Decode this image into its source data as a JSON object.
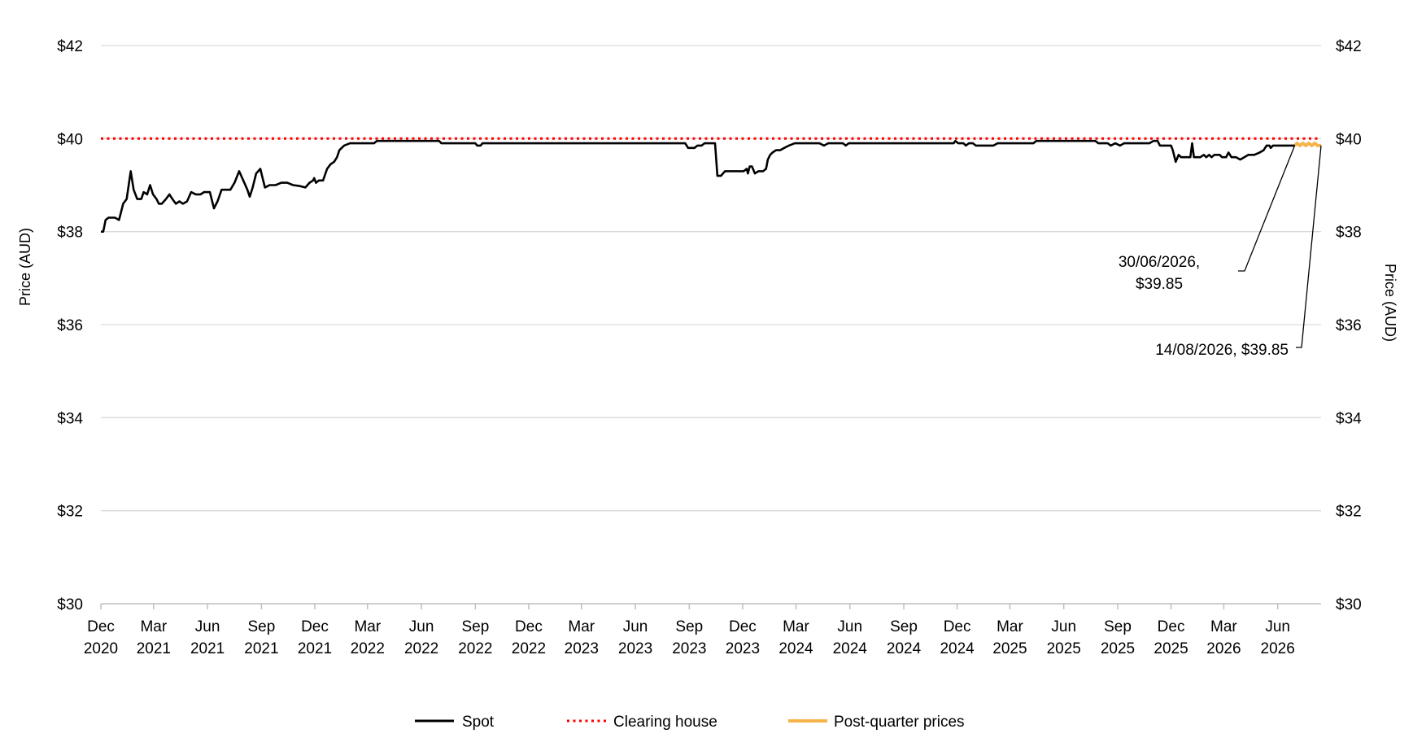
{
  "chart_data": {
    "type": "line",
    "title": "",
    "ylabel_left": "Price (AUD)",
    "ylabel_right": "Price (AUD)",
    "ylim": [
      30,
      42
    ],
    "yticks": [
      30,
      32,
      34,
      36,
      38,
      40,
      42
    ],
    "ytick_labels": [
      "$30",
      "$32",
      "$34",
      "$36",
      "$38",
      "$40",
      "$42"
    ],
    "x_range": [
      "2020-12-01",
      "2026-08-14"
    ],
    "xticks": [
      {
        "date": "2020-12-01",
        "label": [
          "Dec",
          "2020"
        ]
      },
      {
        "date": "2021-03-01",
        "label": [
          "Mar",
          "2021"
        ]
      },
      {
        "date": "2021-06-01",
        "label": [
          "Jun",
          "2021"
        ]
      },
      {
        "date": "2021-09-01",
        "label": [
          "Sep",
          "2021"
        ]
      },
      {
        "date": "2021-12-01",
        "label": [
          "Dec",
          "2021"
        ]
      },
      {
        "date": "2022-03-01",
        "label": [
          "Mar",
          "2022"
        ]
      },
      {
        "date": "2022-06-01",
        "label": [
          "Jun",
          "2022"
        ]
      },
      {
        "date": "2022-09-01",
        "label": [
          "Sep",
          "2022"
        ]
      },
      {
        "date": "2022-12-01",
        "label": [
          "Dec",
          "2022"
        ]
      },
      {
        "date": "2023-03-01",
        "label": [
          "Mar",
          "2023"
        ]
      },
      {
        "date": "2023-06-01",
        "label": [
          "Jun",
          "2023"
        ]
      },
      {
        "date": "2023-09-01",
        "label": [
          "Sep",
          "2023"
        ]
      },
      {
        "date": "2023-12-01",
        "label": [
          "Dec",
          "2023"
        ]
      },
      {
        "date": "2024-03-01",
        "label": [
          "Mar",
          "2024"
        ]
      },
      {
        "date": "2024-06-01",
        "label": [
          "Jun",
          "2024"
        ]
      },
      {
        "date": "2024-09-01",
        "label": [
          "Sep",
          "2024"
        ]
      },
      {
        "date": "2024-12-01",
        "label": [
          "Dec",
          "2024"
        ]
      },
      {
        "date": "2025-03-01",
        "label": [
          "Mar",
          "2025"
        ]
      },
      {
        "date": "2025-06-01",
        "label": [
          "Jun",
          "2025"
        ]
      },
      {
        "date": "2025-09-01",
        "label": [
          "Sep",
          "2025"
        ]
      },
      {
        "date": "2025-12-01",
        "label": [
          "Dec",
          "2025"
        ]
      },
      {
        "date": "2026-03-01",
        "label": [
          "Mar",
          "2026"
        ]
      },
      {
        "date": "2026-06-01",
        "label": [
          "Jun",
          "2026"
        ]
      }
    ],
    "grid": true,
    "legend_position": "bottom",
    "series": [
      {
        "name": "Spot",
        "color": "#000000",
        "style": "solid",
        "points": [
          [
            "2020-12-01",
            38.0
          ],
          [
            "2020-12-05",
            38.0
          ],
          [
            "2020-12-09",
            38.25
          ],
          [
            "2020-12-14",
            38.3
          ],
          [
            "2020-12-25",
            38.3
          ],
          [
            "2021-01-01",
            38.25
          ],
          [
            "2021-01-08",
            38.6
          ],
          [
            "2021-01-14",
            38.7
          ],
          [
            "2021-01-21",
            39.3
          ],
          [
            "2021-01-26",
            38.9
          ],
          [
            "2021-02-01",
            38.7
          ],
          [
            "2021-02-08",
            38.7
          ],
          [
            "2021-02-12",
            38.85
          ],
          [
            "2021-02-18",
            38.8
          ],
          [
            "2021-02-23",
            39.0
          ],
          [
            "2021-02-28",
            38.8
          ],
          [
            "2021-03-06",
            38.7
          ],
          [
            "2021-03-10",
            38.6
          ],
          [
            "2021-03-15",
            38.6
          ],
          [
            "2021-03-22",
            38.7
          ],
          [
            "2021-03-28",
            38.8
          ],
          [
            "2021-04-02",
            38.7
          ],
          [
            "2021-04-08",
            38.6
          ],
          [
            "2021-04-14",
            38.65
          ],
          [
            "2021-04-20",
            38.6
          ],
          [
            "2021-04-27",
            38.65
          ],
          [
            "2021-05-04",
            38.85
          ],
          [
            "2021-05-12",
            38.8
          ],
          [
            "2021-05-20",
            38.8
          ],
          [
            "2021-05-26",
            38.85
          ],
          [
            "2021-06-05",
            38.85
          ],
          [
            "2021-06-12",
            38.5
          ],
          [
            "2021-06-18",
            38.65
          ],
          [
            "2021-06-25",
            38.9
          ],
          [
            "2021-07-01",
            38.9
          ],
          [
            "2021-07-10",
            38.9
          ],
          [
            "2021-07-17",
            39.05
          ],
          [
            "2021-07-25",
            39.3
          ],
          [
            "2021-08-01",
            39.1
          ],
          [
            "2021-08-08",
            38.9
          ],
          [
            "2021-08-12",
            38.75
          ],
          [
            "2021-08-17",
            38.95
          ],
          [
            "2021-08-23",
            39.25
          ],
          [
            "2021-08-30",
            39.35
          ],
          [
            "2021-09-07",
            38.95
          ],
          [
            "2021-09-15",
            39.0
          ],
          [
            "2021-09-25",
            39.0
          ],
          [
            "2021-10-05",
            39.05
          ],
          [
            "2021-10-15",
            39.05
          ],
          [
            "2021-10-25",
            39.0
          ],
          [
            "2021-11-05",
            38.98
          ],
          [
            "2021-11-15",
            38.95
          ],
          [
            "2021-11-22",
            39.05
          ],
          [
            "2021-11-28",
            39.1
          ],
          [
            "2021-11-30",
            39.15
          ],
          [
            "2021-12-03",
            39.05
          ],
          [
            "2021-12-08",
            39.1
          ],
          [
            "2021-12-15",
            39.1
          ],
          [
            "2021-12-22",
            39.35
          ],
          [
            "2021-12-28",
            39.45
          ],
          [
            "2022-01-03",
            39.5
          ],
          [
            "2022-01-08",
            39.6
          ],
          [
            "2022-01-12",
            39.75
          ],
          [
            "2022-01-20",
            39.85
          ],
          [
            "2022-01-30",
            39.9
          ],
          [
            "2022-02-15",
            39.9
          ],
          [
            "2022-03-01",
            39.9
          ],
          [
            "2022-03-12",
            39.9
          ],
          [
            "2022-03-17",
            39.95
          ],
          [
            "2022-04-15",
            39.95
          ],
          [
            "2022-06-01",
            39.95
          ],
          [
            "2022-07-01",
            39.95
          ],
          [
            "2022-07-05",
            39.9
          ],
          [
            "2022-08-10",
            39.9
          ],
          [
            "2022-09-01",
            39.9
          ],
          [
            "2022-09-04",
            39.85
          ],
          [
            "2022-09-10",
            39.85
          ],
          [
            "2022-09-13",
            39.9
          ],
          [
            "2022-12-01",
            39.9
          ],
          [
            "2023-03-01",
            39.9
          ],
          [
            "2023-06-01",
            39.9
          ],
          [
            "2023-08-25",
            39.9
          ],
          [
            "2023-08-30",
            39.8
          ],
          [
            "2023-09-10",
            39.8
          ],
          [
            "2023-09-15",
            39.85
          ],
          [
            "2023-09-22",
            39.85
          ],
          [
            "2023-09-27",
            39.9
          ],
          [
            "2023-10-10",
            39.9
          ],
          [
            "2023-10-15",
            39.9
          ],
          [
            "2023-10-19",
            39.2
          ],
          [
            "2023-10-25",
            39.2
          ],
          [
            "2023-11-01",
            39.3
          ],
          [
            "2023-11-15",
            39.3
          ],
          [
            "2023-12-03",
            39.3
          ],
          [
            "2023-12-08",
            39.35
          ],
          [
            "2023-12-10",
            39.25
          ],
          [
            "2023-12-13",
            39.4
          ],
          [
            "2023-12-17",
            39.4
          ],
          [
            "2023-12-22",
            39.25
          ],
          [
            "2023-12-28",
            39.3
          ],
          [
            "2024-01-05",
            39.3
          ],
          [
            "2024-01-10",
            39.35
          ],
          [
            "2024-01-13",
            39.55
          ],
          [
            "2024-01-17",
            39.65
          ],
          [
            "2024-01-21",
            39.7
          ],
          [
            "2024-01-27",
            39.75
          ],
          [
            "2024-02-03",
            39.75
          ],
          [
            "2024-02-10",
            39.8
          ],
          [
            "2024-02-18",
            39.85
          ],
          [
            "2024-02-28",
            39.9
          ],
          [
            "2024-03-15",
            39.9
          ],
          [
            "2024-04-10",
            39.9
          ],
          [
            "2024-04-18",
            39.85
          ],
          [
            "2024-04-25",
            39.9
          ],
          [
            "2024-05-20",
            39.9
          ],
          [
            "2024-05-25",
            39.85
          ],
          [
            "2024-05-30",
            39.9
          ],
          [
            "2024-06-15",
            39.9
          ],
          [
            "2024-09-01",
            39.9
          ],
          [
            "2024-11-25",
            39.9
          ],
          [
            "2024-11-28",
            39.95
          ],
          [
            "2024-12-03",
            39.9
          ],
          [
            "2024-12-12",
            39.9
          ],
          [
            "2024-12-16",
            39.85
          ],
          [
            "2024-12-21",
            39.9
          ],
          [
            "2024-12-28",
            39.9
          ],
          [
            "2025-01-02",
            39.85
          ],
          [
            "2025-02-01",
            39.85
          ],
          [
            "2025-02-08",
            39.9
          ],
          [
            "2025-04-10",
            39.9
          ],
          [
            "2025-04-15",
            39.95
          ],
          [
            "2025-06-01",
            39.95
          ],
          [
            "2025-07-25",
            39.95
          ],
          [
            "2025-07-30",
            39.9
          ],
          [
            "2025-08-15",
            39.9
          ],
          [
            "2025-08-20",
            39.85
          ],
          [
            "2025-08-28",
            39.9
          ],
          [
            "2025-09-05",
            39.85
          ],
          [
            "2025-09-12",
            39.9
          ],
          [
            "2025-10-25",
            39.9
          ],
          [
            "2025-11-01",
            39.95
          ],
          [
            "2025-11-08",
            39.95
          ],
          [
            "2025-11-12",
            39.85
          ],
          [
            "2025-11-25",
            39.85
          ],
          [
            "2025-12-01",
            39.85
          ],
          [
            "2025-12-04",
            39.75
          ],
          [
            "2025-12-09",
            39.5
          ],
          [
            "2025-12-14",
            39.65
          ],
          [
            "2025-12-18",
            39.6
          ],
          [
            "2026-01-03",
            39.6
          ],
          [
            "2026-01-06",
            39.9
          ],
          [
            "2026-01-09",
            39.6
          ],
          [
            "2026-01-20",
            39.6
          ],
          [
            "2026-01-26",
            39.65
          ],
          [
            "2026-01-30",
            39.6
          ],
          [
            "2026-02-04",
            39.65
          ],
          [
            "2026-02-08",
            39.6
          ],
          [
            "2026-02-13",
            39.65
          ],
          [
            "2026-02-22",
            39.65
          ],
          [
            "2026-02-26",
            39.6
          ],
          [
            "2026-03-05",
            39.6
          ],
          [
            "2026-03-09",
            39.7
          ],
          [
            "2026-03-14",
            39.6
          ],
          [
            "2026-03-22",
            39.6
          ],
          [
            "2026-03-29",
            39.55
          ],
          [
            "2026-04-05",
            39.6
          ],
          [
            "2026-04-12",
            39.65
          ],
          [
            "2026-04-22",
            39.65
          ],
          [
            "2026-05-01",
            39.7
          ],
          [
            "2026-05-08",
            39.75
          ],
          [
            "2026-05-13",
            39.85
          ],
          [
            "2026-05-18",
            39.85
          ],
          [
            "2026-05-20",
            39.8
          ],
          [
            "2026-05-24",
            39.85
          ],
          [
            "2026-06-30",
            39.85
          ]
        ]
      },
      {
        "name": "Clearing house",
        "color": "#ff0000",
        "style": "dotted",
        "points": [
          [
            "2020-12-01",
            40.0
          ],
          [
            "2026-08-14",
            40.0
          ]
        ]
      },
      {
        "name": "Post-quarter prices",
        "color": "#f5b44a",
        "style": "solid",
        "points": [
          [
            "2026-06-30",
            39.85
          ],
          [
            "2026-07-04",
            39.9
          ],
          [
            "2026-07-09",
            39.85
          ],
          [
            "2026-07-14",
            39.9
          ],
          [
            "2026-07-19",
            39.85
          ],
          [
            "2026-07-24",
            39.9
          ],
          [
            "2026-07-29",
            39.85
          ],
          [
            "2026-08-03",
            39.9
          ],
          [
            "2026-08-08",
            39.85
          ],
          [
            "2026-08-14",
            39.85
          ]
        ]
      }
    ],
    "annotations": [
      {
        "lines": [
          "30/06/2026,",
          "$39.85"
        ],
        "point_date": "2026-06-30",
        "point_value": 39.85,
        "placement": "lower-left"
      },
      {
        "lines": [
          "14/08/2026, $39.85"
        ],
        "point_date": "2026-08-14",
        "point_value": 39.85,
        "placement": "lower-left"
      }
    ],
    "legend": [
      "Spot",
      "Clearing house",
      "Post-quarter prices"
    ]
  }
}
